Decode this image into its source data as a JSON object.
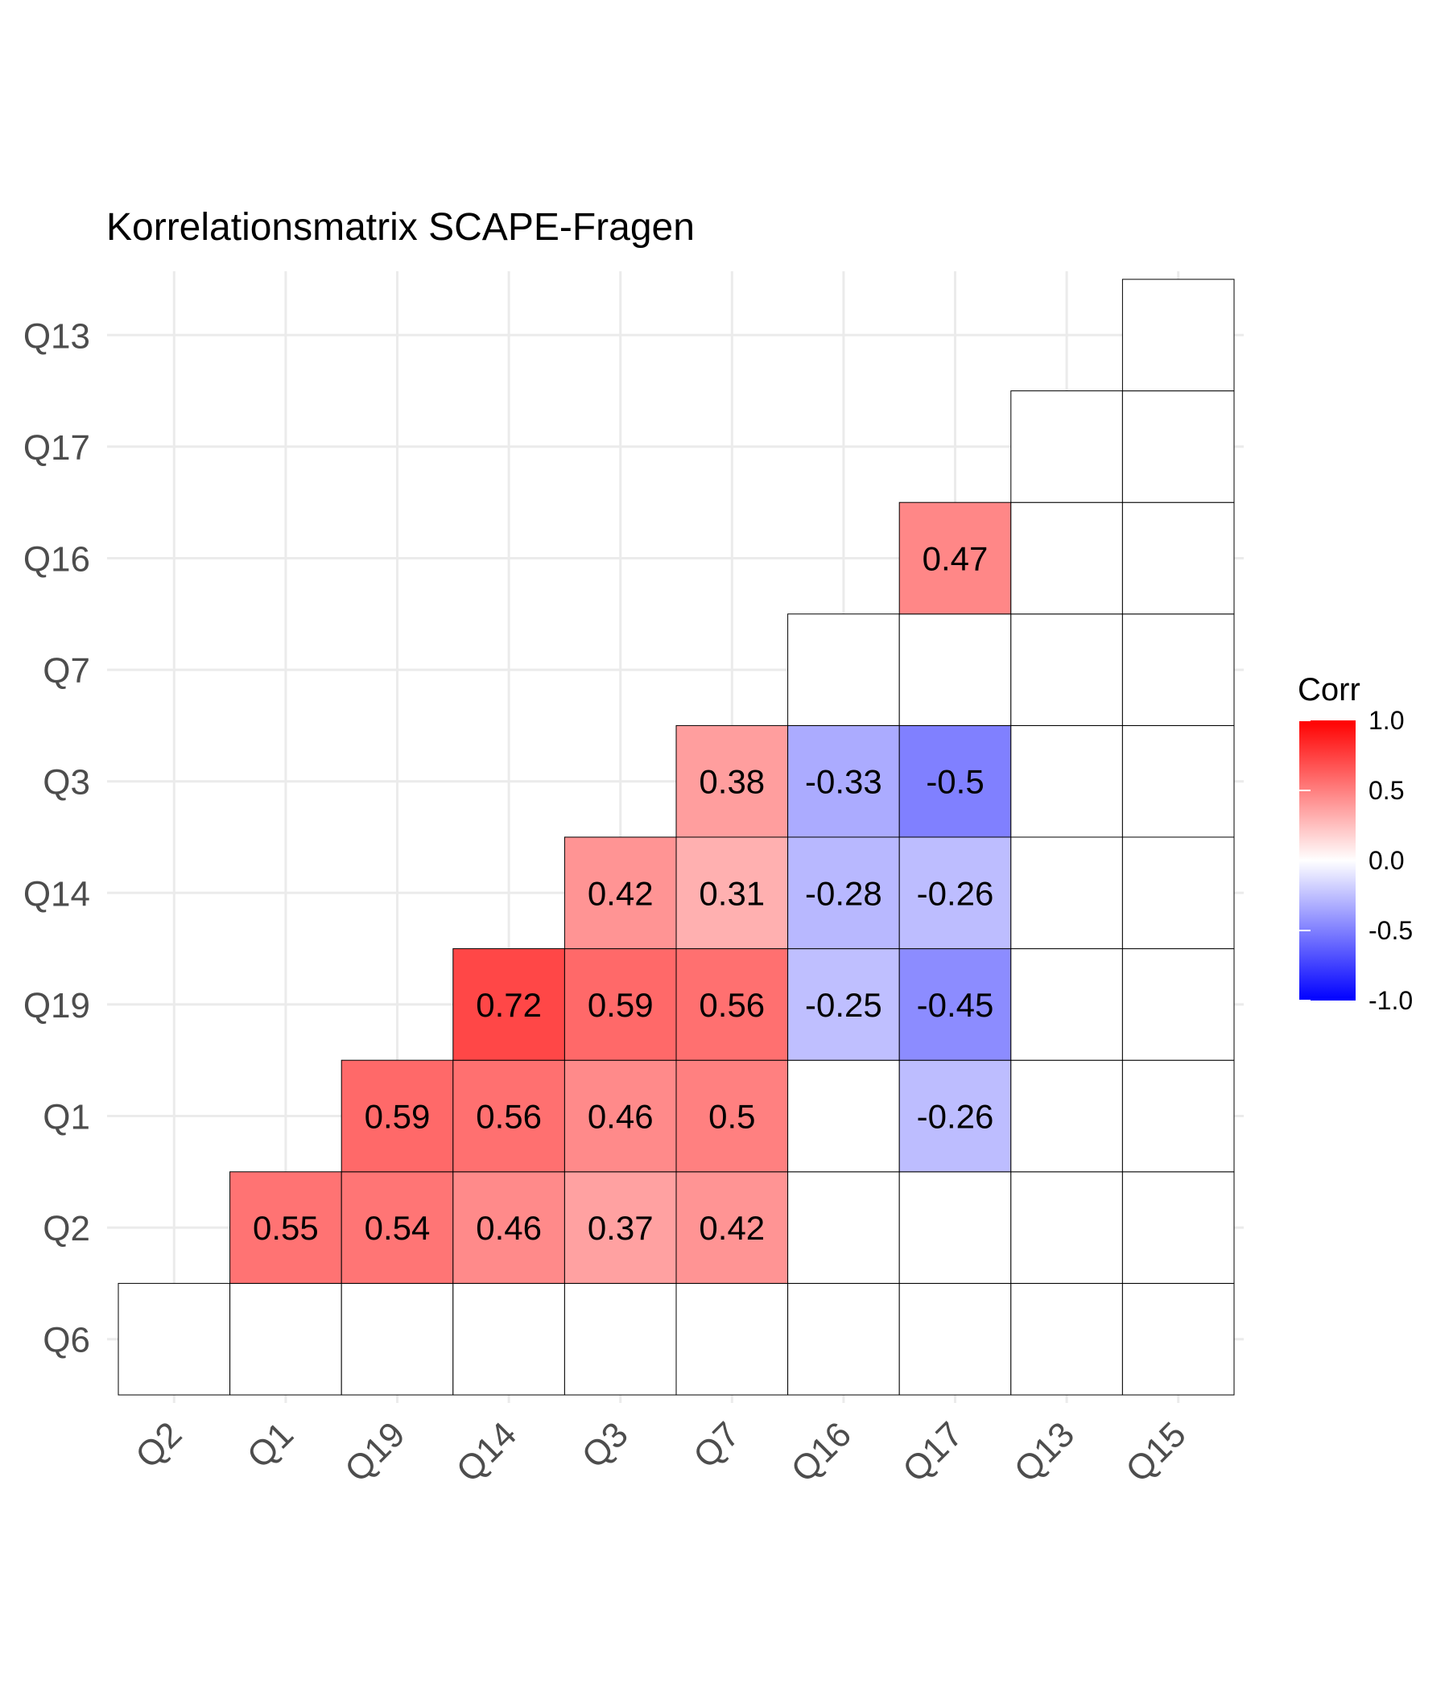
{
  "chart_data": {
    "type": "heatmap",
    "title": "Korrelationsmatrix SCAPE-Fragen",
    "x_categories": [
      "Q2",
      "Q1",
      "Q19",
      "Q14",
      "Q3",
      "Q7",
      "Q16",
      "Q17",
      "Q13",
      "Q15"
    ],
    "y_categories": [
      "Q6",
      "Q2",
      "Q1",
      "Q19",
      "Q14",
      "Q3",
      "Q7",
      "Q16",
      "Q17",
      "Q13"
    ],
    "note_y_order": "first y category is the bottom row",
    "cells": [
      {
        "x": "Q2",
        "y": "Q6",
        "value": null
      },
      {
        "x": "Q1",
        "y": "Q6",
        "value": null
      },
      {
        "x": "Q19",
        "y": "Q6",
        "value": null
      },
      {
        "x": "Q14",
        "y": "Q6",
        "value": null
      },
      {
        "x": "Q3",
        "y": "Q6",
        "value": null
      },
      {
        "x": "Q7",
        "y": "Q6",
        "value": null
      },
      {
        "x": "Q16",
        "y": "Q6",
        "value": null
      },
      {
        "x": "Q17",
        "y": "Q6",
        "value": null
      },
      {
        "x": "Q13",
        "y": "Q6",
        "value": null
      },
      {
        "x": "Q15",
        "y": "Q6",
        "value": null
      },
      {
        "x": "Q1",
        "y": "Q2",
        "value": 0.55
      },
      {
        "x": "Q19",
        "y": "Q2",
        "value": 0.54
      },
      {
        "x": "Q14",
        "y": "Q2",
        "value": 0.46
      },
      {
        "x": "Q3",
        "y": "Q2",
        "value": 0.37
      },
      {
        "x": "Q7",
        "y": "Q2",
        "value": 0.42
      },
      {
        "x": "Q16",
        "y": "Q2",
        "value": null
      },
      {
        "x": "Q17",
        "y": "Q2",
        "value": null
      },
      {
        "x": "Q13",
        "y": "Q2",
        "value": null
      },
      {
        "x": "Q15",
        "y": "Q2",
        "value": null
      },
      {
        "x": "Q19",
        "y": "Q1",
        "value": 0.59
      },
      {
        "x": "Q14",
        "y": "Q1",
        "value": 0.56
      },
      {
        "x": "Q3",
        "y": "Q1",
        "value": 0.46
      },
      {
        "x": "Q7",
        "y": "Q1",
        "value": 0.5
      },
      {
        "x": "Q16",
        "y": "Q1",
        "value": null
      },
      {
        "x": "Q17",
        "y": "Q1",
        "value": -0.26
      },
      {
        "x": "Q13",
        "y": "Q1",
        "value": null
      },
      {
        "x": "Q15",
        "y": "Q1",
        "value": null
      },
      {
        "x": "Q14",
        "y": "Q19",
        "value": 0.72
      },
      {
        "x": "Q3",
        "y": "Q19",
        "value": 0.59
      },
      {
        "x": "Q7",
        "y": "Q19",
        "value": 0.56
      },
      {
        "x": "Q16",
        "y": "Q19",
        "value": -0.25
      },
      {
        "x": "Q17",
        "y": "Q19",
        "value": -0.45
      },
      {
        "x": "Q13",
        "y": "Q19",
        "value": null
      },
      {
        "x": "Q15",
        "y": "Q19",
        "value": null
      },
      {
        "x": "Q3",
        "y": "Q14",
        "value": 0.42
      },
      {
        "x": "Q7",
        "y": "Q14",
        "value": 0.31
      },
      {
        "x": "Q16",
        "y": "Q14",
        "value": -0.28
      },
      {
        "x": "Q17",
        "y": "Q14",
        "value": -0.26
      },
      {
        "x": "Q13",
        "y": "Q14",
        "value": null
      },
      {
        "x": "Q15",
        "y": "Q14",
        "value": null
      },
      {
        "x": "Q7",
        "y": "Q3",
        "value": 0.38
      },
      {
        "x": "Q16",
        "y": "Q3",
        "value": -0.33
      },
      {
        "x": "Q17",
        "y": "Q3",
        "value": -0.5
      },
      {
        "x": "Q13",
        "y": "Q3",
        "value": null
      },
      {
        "x": "Q15",
        "y": "Q3",
        "value": null
      },
      {
        "x": "Q16",
        "y": "Q7",
        "value": null
      },
      {
        "x": "Q17",
        "y": "Q7",
        "value": null
      },
      {
        "x": "Q13",
        "y": "Q7",
        "value": null
      },
      {
        "x": "Q15",
        "y": "Q7",
        "value": null
      },
      {
        "x": "Q17",
        "y": "Q16",
        "value": 0.47
      },
      {
        "x": "Q13",
        "y": "Q16",
        "value": null
      },
      {
        "x": "Q15",
        "y": "Q16",
        "value": null
      },
      {
        "x": "Q13",
        "y": "Q17",
        "value": null
      },
      {
        "x": "Q15",
        "y": "Q17",
        "value": null
      },
      {
        "x": "Q15",
        "y": "Q13",
        "value": null
      }
    ],
    "legend": {
      "title": "Corr",
      "range": [
        -1.0,
        1.0
      ],
      "ticks": [
        "1.0",
        "0.5",
        "0.0",
        "-0.5",
        "-1.0"
      ],
      "tick_values": [
        1.0,
        0.5,
        0.0,
        -0.5,
        -1.0
      ],
      "colors": {
        "low": "#0000FF",
        "mid": "#FFFFFF",
        "high": "#FF0000"
      },
      "placement": "right"
    },
    "grid": true
  }
}
